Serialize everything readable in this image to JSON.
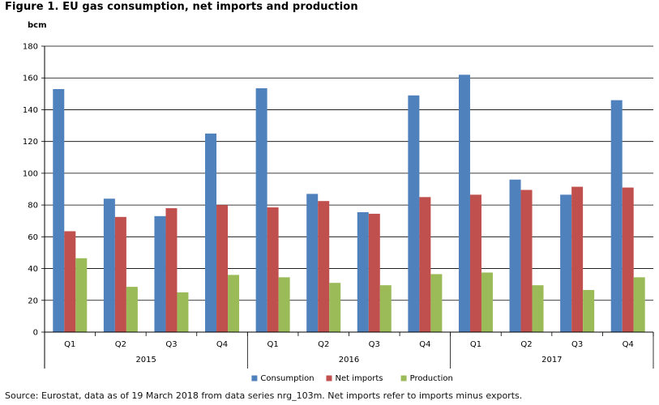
{
  "figure": {
    "title": "Figure 1. EU gas consumption, net imports and production",
    "source": "Source: Eurostat, data as of 19 March 2018 from data series nrg_103m. Net imports refer to imports minus exports."
  },
  "chart_data": {
    "type": "bar",
    "ylabel": "bcm",
    "xlabel": "",
    "ylim": [
      0,
      180
    ],
    "yticks": [
      0,
      20,
      40,
      60,
      80,
      100,
      120,
      140,
      160,
      180
    ],
    "grid": true,
    "legend_position": "bottom-center",
    "categories": [
      "Q1",
      "Q2",
      "Q3",
      "Q4",
      "Q1",
      "Q2",
      "Q3",
      "Q4",
      "Q1",
      "Q2",
      "Q3",
      "Q4"
    ],
    "groups": [
      {
        "label": "2015",
        "count": 4
      },
      {
        "label": "2016",
        "count": 4
      },
      {
        "label": "2017",
        "count": 4
      }
    ],
    "series": [
      {
        "name": "Consumption",
        "color": "#4f81bd",
        "values": [
          153,
          84,
          73,
          125,
          153.5,
          87,
          75.5,
          149,
          162,
          96,
          86.5,
          146
        ]
      },
      {
        "name": "Net imports",
        "color": "#c0504d",
        "values": [
          63.5,
          72.5,
          78,
          80,
          78.5,
          82.5,
          74.5,
          85,
          86.5,
          89.5,
          91.5,
          91
        ]
      },
      {
        "name": "Production",
        "color": "#9bbb59",
        "values": [
          46.5,
          28.5,
          25,
          36,
          34.5,
          31,
          29.5,
          36.5,
          37.5,
          29.5,
          26.5,
          34.5
        ]
      }
    ]
  }
}
